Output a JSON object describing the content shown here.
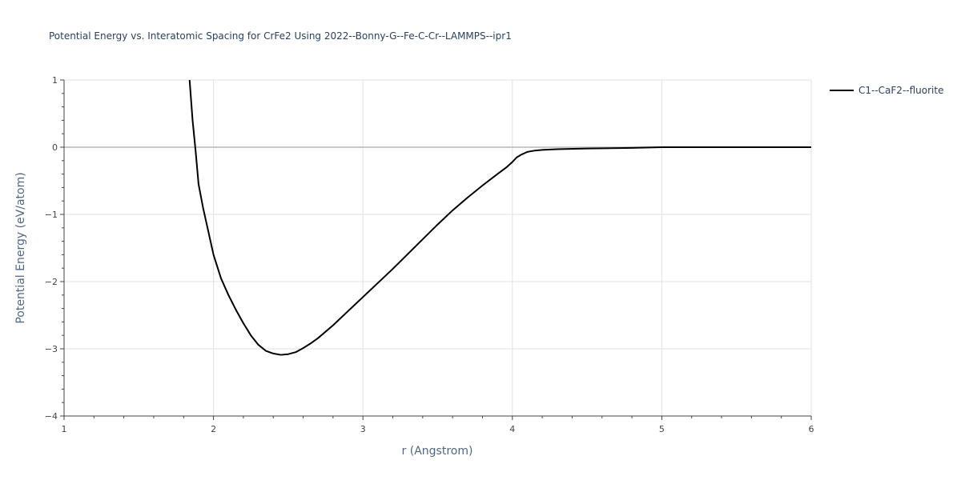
{
  "chart_data": {
    "type": "line",
    "title": "Potential Energy vs. Interatomic Spacing for CrFe2 Using 2022--Bonny-G--Fe-C-Cr--LAMMPS--ipr1",
    "xlabel": "r (Angstrom)",
    "ylabel": "Potential Energy (eV/atom)",
    "xlim": [
      1,
      6
    ],
    "ylim": [
      -4,
      1
    ],
    "x_ticks": [
      1,
      2,
      3,
      4,
      5,
      6
    ],
    "x_tick_labels": [
      "1",
      "2",
      "3",
      "4",
      "5",
      "6"
    ],
    "y_ticks": [
      1,
      0,
      -1,
      -2,
      -3,
      -4
    ],
    "y_tick_labels": [
      "1",
      "0",
      "−1",
      "−2",
      "−3",
      "−4"
    ],
    "grid": true,
    "legend_position": "top-right-outside",
    "series": [
      {
        "name": "C1--CaF2--fluorite",
        "color": "#000000",
        "x": [
          1.84,
          1.86,
          1.88,
          1.9,
          1.93,
          1.96,
          2.0,
          2.05,
          2.1,
          2.15,
          2.2,
          2.25,
          2.3,
          2.35,
          2.4,
          2.45,
          2.5,
          2.55,
          2.6,
          2.65,
          2.7,
          2.8,
          2.9,
          3.0,
          3.1,
          3.2,
          3.3,
          3.4,
          3.5,
          3.6,
          3.7,
          3.8,
          3.9,
          3.96,
          4.0,
          4.03,
          4.06,
          4.1,
          4.15,
          4.2,
          4.3,
          4.5,
          4.8,
          5.0,
          5.5,
          6.0
        ],
        "y": [
          1.0,
          0.4,
          -0.05,
          -0.55,
          -0.9,
          -1.2,
          -1.6,
          -1.95,
          -2.2,
          -2.42,
          -2.62,
          -2.8,
          -2.94,
          -3.03,
          -3.07,
          -3.09,
          -3.08,
          -3.05,
          -2.99,
          -2.92,
          -2.84,
          -2.65,
          -2.44,
          -2.23,
          -2.02,
          -1.81,
          -1.59,
          -1.37,
          -1.15,
          -0.94,
          -0.75,
          -0.57,
          -0.4,
          -0.3,
          -0.22,
          -0.15,
          -0.11,
          -0.07,
          -0.05,
          -0.04,
          -0.03,
          -0.02,
          -0.01,
          0.0,
          0.0,
          0.0
        ]
      }
    ]
  }
}
